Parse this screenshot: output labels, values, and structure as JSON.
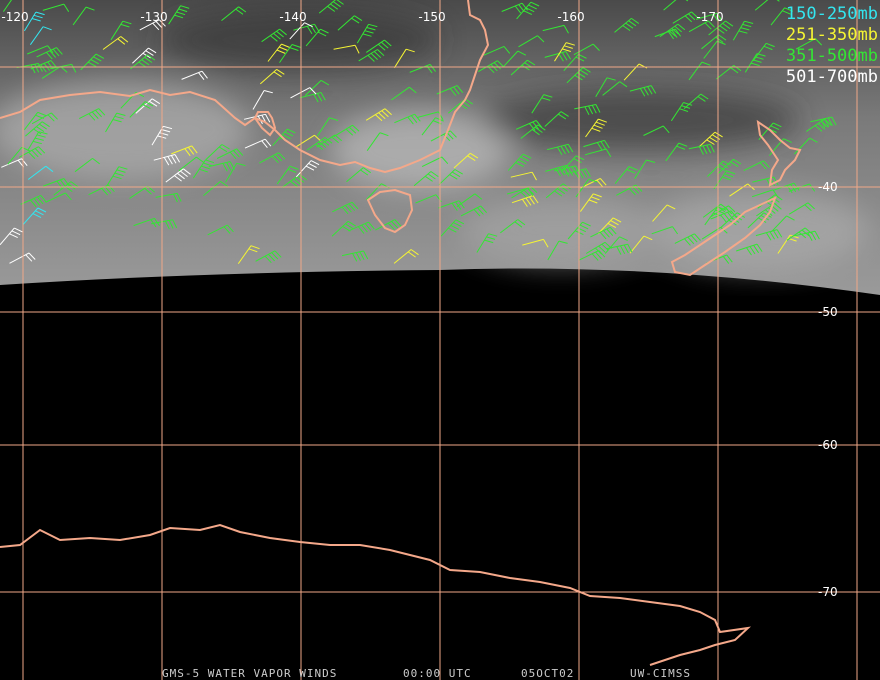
{
  "map": {
    "longitude_labels": [
      "-120",
      "-130",
      "-140",
      "-150",
      "-160",
      "-170"
    ],
    "latitude_labels": [
      "-40",
      "-50",
      "-60",
      "-70"
    ],
    "legend": [
      {
        "label": "150-250mb",
        "color": "#33e6f0"
      },
      {
        "label": "251-350mb",
        "color": "#f5f533"
      },
      {
        "label": "351-500mb",
        "color": "#33e633"
      },
      {
        "label": "501-700mb",
        "color": "#ffffff"
      }
    ],
    "footer": [
      "GMS-5 WATER VAPOR WINDS",
      "00:00 UTC",
      "05OCT02",
      "UW-CIMSS"
    ]
  }
}
